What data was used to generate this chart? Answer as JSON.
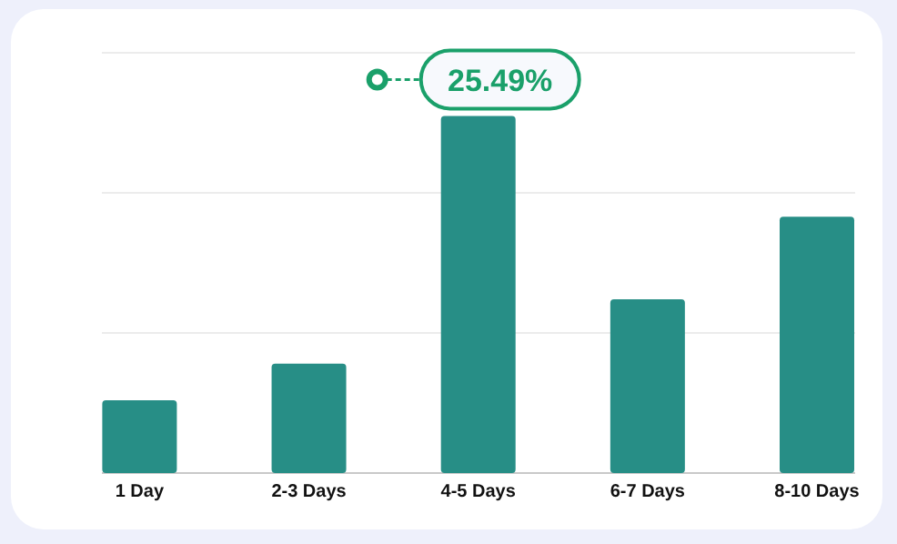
{
  "chart_data": {
    "type": "bar",
    "categories": [
      "1 Day",
      "2-3 Days",
      "4-5 Days",
      "6-7 Days",
      "8-10 Days"
    ],
    "values": [
      5.2,
      7.8,
      25.49,
      12.4,
      18.3
    ],
    "value_labels": [
      null,
      null,
      "25.49%",
      null,
      null
    ],
    "color": "#278e86",
    "ref_lines": [
      {
        "axis": "y",
        "value": 10,
        "color": "#ececec"
      },
      {
        "axis": "y",
        "value": 20,
        "color": "#ececec"
      },
      {
        "axis": "y",
        "value": 30,
        "color": "#ececec"
      }
    ]
  }
}
